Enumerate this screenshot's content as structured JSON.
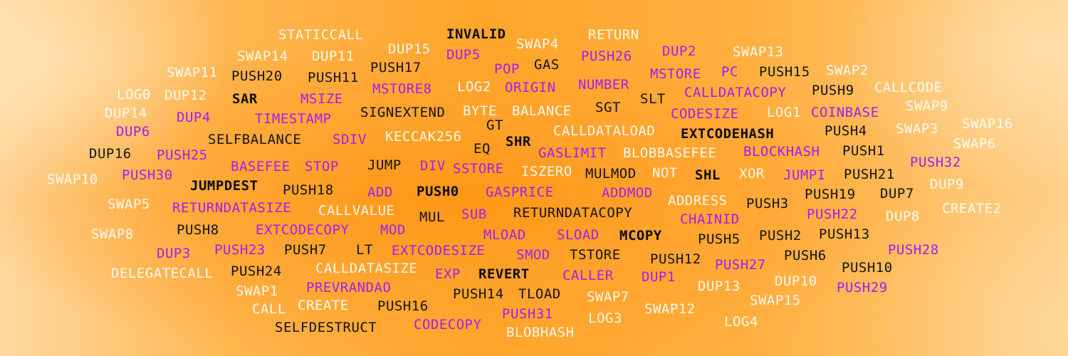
{
  "opcodes": [
    {
      "text": "STATICCALL",
      "style": "white"
    },
    {
      "text": "INVALID",
      "style": "bold"
    },
    {
      "text": "RETURN",
      "style": "white"
    },
    {
      "text": "DUP15",
      "style": "white"
    },
    {
      "text": "SWAP4",
      "style": "white"
    },
    {
      "text": "SWAP14",
      "style": "white"
    },
    {
      "text": "DUP11",
      "style": "white"
    },
    {
      "text": "DUP5",
      "style": "purple"
    },
    {
      "text": "PUSH26",
      "style": "purple"
    },
    {
      "text": "DUP2",
      "style": "purple"
    },
    {
      "text": "SWAP13",
      "style": "white"
    },
    {
      "text": "GAS",
      "style": "black"
    },
    {
      "text": "PUSH17",
      "style": "black"
    },
    {
      "text": "POP",
      "style": "purple"
    },
    {
      "text": "SWAP11",
      "style": "white"
    },
    {
      "text": "PUSH20",
      "style": "black"
    },
    {
      "text": "PUSH11",
      "style": "black"
    },
    {
      "text": "MSTORE",
      "style": "purple"
    },
    {
      "text": "PC",
      "style": "purple"
    },
    {
      "text": "PUSH15",
      "style": "black"
    },
    {
      "text": "SWAP2",
      "style": "white"
    },
    {
      "text": "NUMBER",
      "style": "purple"
    },
    {
      "text": "LOG2",
      "style": "white"
    },
    {
      "text": "ORIGIN",
      "style": "purple"
    },
    {
      "text": "MSTORE8",
      "style": "purple"
    },
    {
      "text": "CALLCODE",
      "style": "white"
    },
    {
      "text": "LOG0",
      "style": "white"
    },
    {
      "text": "DUP12",
      "style": "white"
    },
    {
      "text": "SAR",
      "style": "bold"
    },
    {
      "text": "MSIZE",
      "style": "purple"
    },
    {
      "text": "SLT",
      "style": "black"
    },
    {
      "text": "CALLDATACOPY",
      "style": "purple"
    },
    {
      "text": "PUSH9",
      "style": "black"
    },
    {
      "text": "SGT",
      "style": "black"
    },
    {
      "text": "SWAP9",
      "style": "white"
    },
    {
      "text": "DUP14",
      "style": "white"
    },
    {
      "text": "SIGNEXTEND",
      "style": "black"
    },
    {
      "text": "BYTE",
      "style": "white"
    },
    {
      "text": "BALANCE",
      "style": "white"
    },
    {
      "text": "CODESIZE",
      "style": "purple"
    },
    {
      "text": "LOG1",
      "style": "white"
    },
    {
      "text": "COINBASE",
      "style": "purple"
    },
    {
      "text": "DUP4",
      "style": "purple"
    },
    {
      "text": "TIMESTAMP",
      "style": "purple"
    },
    {
      "text": "SWAP16",
      "style": "white"
    },
    {
      "text": "GT",
      "style": "black"
    },
    {
      "text": "DUP6",
      "style": "purple"
    },
    {
      "text": "KECCAK256",
      "style": "white"
    },
    {
      "text": "CALLDATALOAD",
      "style": "white"
    },
    {
      "text": "PUSH4",
      "style": "black"
    },
    {
      "text": "SWAP3",
      "style": "white"
    },
    {
      "text": "SELFBALANCE",
      "style": "black"
    },
    {
      "text": "SDIV",
      "style": "purple"
    },
    {
      "text": "SHR",
      "style": "bold"
    },
    {
      "text": "EXTCODEHASH",
      "style": "bold"
    },
    {
      "text": "SWAP6",
      "style": "white"
    },
    {
      "text": "EQ",
      "style": "black"
    },
    {
      "text": "DUP16",
      "style": "black"
    },
    {
      "text": "PUSH25",
      "style": "purple"
    },
    {
      "text": "GASLIMIT",
      "style": "purple"
    },
    {
      "text": "BLOBBASEFEE",
      "style": "white"
    },
    {
      "text": "BLOCKHASH",
      "style": "purple"
    },
    {
      "text": "PUSH1",
      "style": "black"
    },
    {
      "text": "PUSH32",
      "style": "purple"
    },
    {
      "text": "BASEFEE",
      "style": "purple"
    },
    {
      "text": "STOP",
      "style": "purple"
    },
    {
      "text": "JUMP",
      "style": "black"
    },
    {
      "text": "DIV",
      "style": "purple"
    },
    {
      "text": "SSTORE",
      "style": "purple"
    },
    {
      "text": "ISZERO",
      "style": "white"
    },
    {
      "text": "MULMOD",
      "style": "black"
    },
    {
      "text": "NOT",
      "style": "white"
    },
    {
      "text": "SHL",
      "style": "bold"
    },
    {
      "text": "XOR",
      "style": "white"
    },
    {
      "text": "JUMPI",
      "style": "purple"
    },
    {
      "text": "PUSH21",
      "style": "black"
    },
    {
      "text": "SWAP10",
      "style": "white"
    },
    {
      "text": "PUSH30",
      "style": "purple"
    },
    {
      "text": "DUP9",
      "style": "white"
    },
    {
      "text": "JUMPDEST",
      "style": "bold"
    },
    {
      "text": "PUSH18",
      "style": "black"
    },
    {
      "text": "ADD",
      "style": "purple"
    },
    {
      "text": "PUSH0",
      "style": "bold"
    },
    {
      "text": "GASPRICE",
      "style": "purple"
    },
    {
      "text": "ADDMOD",
      "style": "purple"
    },
    {
      "text": "PUSH19",
      "style": "black"
    },
    {
      "text": "DUP7",
      "style": "black"
    },
    {
      "text": "ADDRESS",
      "style": "white"
    },
    {
      "text": "PUSH3",
      "style": "black"
    },
    {
      "text": "SWAP5",
      "style": "white"
    },
    {
      "text": "RETURNDATASIZE",
      "style": "purple"
    },
    {
      "text": "CALLVALUE",
      "style": "white"
    },
    {
      "text": "CREATE2",
      "style": "white"
    },
    {
      "text": "MUL",
      "style": "black"
    },
    {
      "text": "SUB",
      "style": "purple"
    },
    {
      "text": "RETURNDATACOPY",
      "style": "black"
    },
    {
      "text": "PUSH22",
      "style": "purple"
    },
    {
      "text": "DUP8",
      "style": "white"
    },
    {
      "text": "CHAINID",
      "style": "purple"
    },
    {
      "text": "SWAP8",
      "style": "white"
    },
    {
      "text": "PUSH8",
      "style": "black"
    },
    {
      "text": "EXTCODECOPY",
      "style": "purple"
    },
    {
      "text": "MOD",
      "style": "purple"
    },
    {
      "text": "MLOAD",
      "style": "purple"
    },
    {
      "text": "SLOAD",
      "style": "purple"
    },
    {
      "text": "MCOPY",
      "style": "bold"
    },
    {
      "text": "PUSH5",
      "style": "black"
    },
    {
      "text": "PUSH2",
      "style": "black"
    },
    {
      "text": "PUSH13",
      "style": "black"
    },
    {
      "text": "DUP3",
      "style": "purple"
    },
    {
      "text": "PUSH23",
      "style": "purple"
    },
    {
      "text": "PUSH7",
      "style": "black"
    },
    {
      "text": "LT",
      "style": "black"
    },
    {
      "text": "EXTCODESIZE",
      "style": "purple"
    },
    {
      "text": "SMOD",
      "style": "purple"
    },
    {
      "text": "TSTORE",
      "style": "black"
    },
    {
      "text": "PUSH28",
      "style": "purple"
    },
    {
      "text": "PUSH12",
      "style": "black"
    },
    {
      "text": "PUSH6",
      "style": "black"
    },
    {
      "text": "PUSH27",
      "style": "purple"
    },
    {
      "text": "DELEGATECALL",
      "style": "white"
    },
    {
      "text": "PUSH24",
      "style": "black"
    },
    {
      "text": "CALLDATASIZE",
      "style": "white"
    },
    {
      "text": "EXP",
      "style": "purple"
    },
    {
      "text": "REVERT",
      "style": "bold"
    },
    {
      "text": "CALLER",
      "style": "purple"
    },
    {
      "text": "DUP1",
      "style": "purple"
    },
    {
      "text": "PUSH10",
      "style": "black"
    },
    {
      "text": "DUP10",
      "style": "white"
    },
    {
      "text": "SWAP1",
      "style": "white"
    },
    {
      "text": "PREVRANDAO",
      "style": "purple"
    },
    {
      "text": "DUP13",
      "style": "white"
    },
    {
      "text": "PUSH29",
      "style": "purple"
    },
    {
      "text": "PUSH14",
      "style": "black"
    },
    {
      "text": "TLOAD",
      "style": "black"
    },
    {
      "text": "SWAP7",
      "style": "white"
    },
    {
      "text": "SWAP15",
      "style": "white"
    },
    {
      "text": "CALL",
      "style": "white"
    },
    {
      "text": "CREATE",
      "style": "white"
    },
    {
      "text": "PUSH16",
      "style": "black"
    },
    {
      "text": "SWAP12",
      "style": "white"
    },
    {
      "text": "PUSH31",
      "style": "purple"
    },
    {
      "text": "LOG3",
      "style": "white"
    },
    {
      "text": "LOG4",
      "style": "white"
    },
    {
      "text": "SELFDESTRUCT",
      "style": "black"
    },
    {
      "text": "CODECOPY",
      "style": "purple"
    },
    {
      "text": "BLOBHASH",
      "style": "white"
    }
  ]
}
